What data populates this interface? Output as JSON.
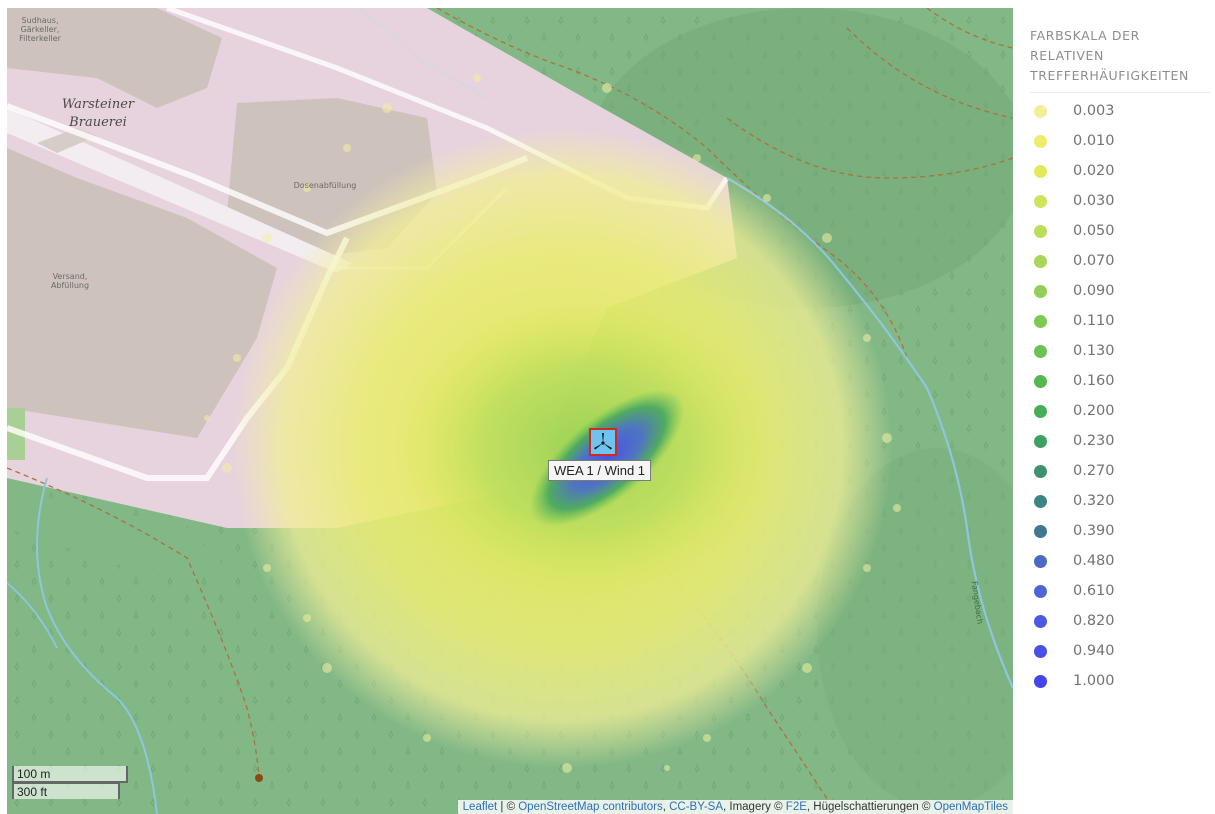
{
  "map": {
    "place_labels": {
      "sudhaus": "Sudhaus,\nGärkeller,\nFilterkeller",
      "brauerei": "Warsteiner\nBrauerei",
      "dosenabfuellung": "Dosenabfüllung",
      "versand": "Versand,\nAbfüllung",
      "stream": "Fangebach"
    },
    "marker": {
      "label": "WEA 1 / Wind 1",
      "icon": "wind-turbine-icon",
      "border_color": "#d12a1b",
      "fill_color": "#6ec3f0"
    },
    "scale": {
      "metric": "100 m",
      "imperial": "300 ft"
    },
    "attribution": {
      "leaflet": "Leaflet",
      "sep1": " | © ",
      "osm": "OpenStreetMap contributors",
      "sep2": ", ",
      "license": "CC-BY-SA",
      "imagery": ", Imagery © ",
      "f2e": "F2E",
      "hill": ", Hügelschattierungen © ",
      "tiles": "OpenMapTiles"
    }
  },
  "legend": {
    "title": "FARBSKALA DER RELATIVEN TREFFERHÄUFIGKEITEN",
    "items": [
      {
        "value": "0.003",
        "color": "#f2ee9a"
      },
      {
        "value": "0.010",
        "color": "#eeec6c"
      },
      {
        "value": "0.020",
        "color": "#e2ea5c"
      },
      {
        "value": "0.030",
        "color": "#cfe35d"
      },
      {
        "value": "0.050",
        "color": "#bcdc5c"
      },
      {
        "value": "0.070",
        "color": "#a9d65a"
      },
      {
        "value": "0.090",
        "color": "#93cf57"
      },
      {
        "value": "0.110",
        "color": "#7fc854"
      },
      {
        "value": "0.130",
        "color": "#6bc152"
      },
      {
        "value": "0.160",
        "color": "#55b951"
      },
      {
        "value": "0.200",
        "color": "#45ad56"
      },
      {
        "value": "0.230",
        "color": "#3fa062"
      },
      {
        "value": "0.270",
        "color": "#3d9270"
      },
      {
        "value": "0.320",
        "color": "#3d8580"
      },
      {
        "value": "0.390",
        "color": "#3f7891"
      },
      {
        "value": "0.480",
        "color": "#4a6bc1"
      },
      {
        "value": "0.610",
        "color": "#4f64d6"
      },
      {
        "value": "0.820",
        "color": "#4d59e2"
      },
      {
        "value": "0.940",
        "color": "#4a4fe9"
      },
      {
        "value": "1.000",
        "color": "#4545ee"
      }
    ]
  }
}
